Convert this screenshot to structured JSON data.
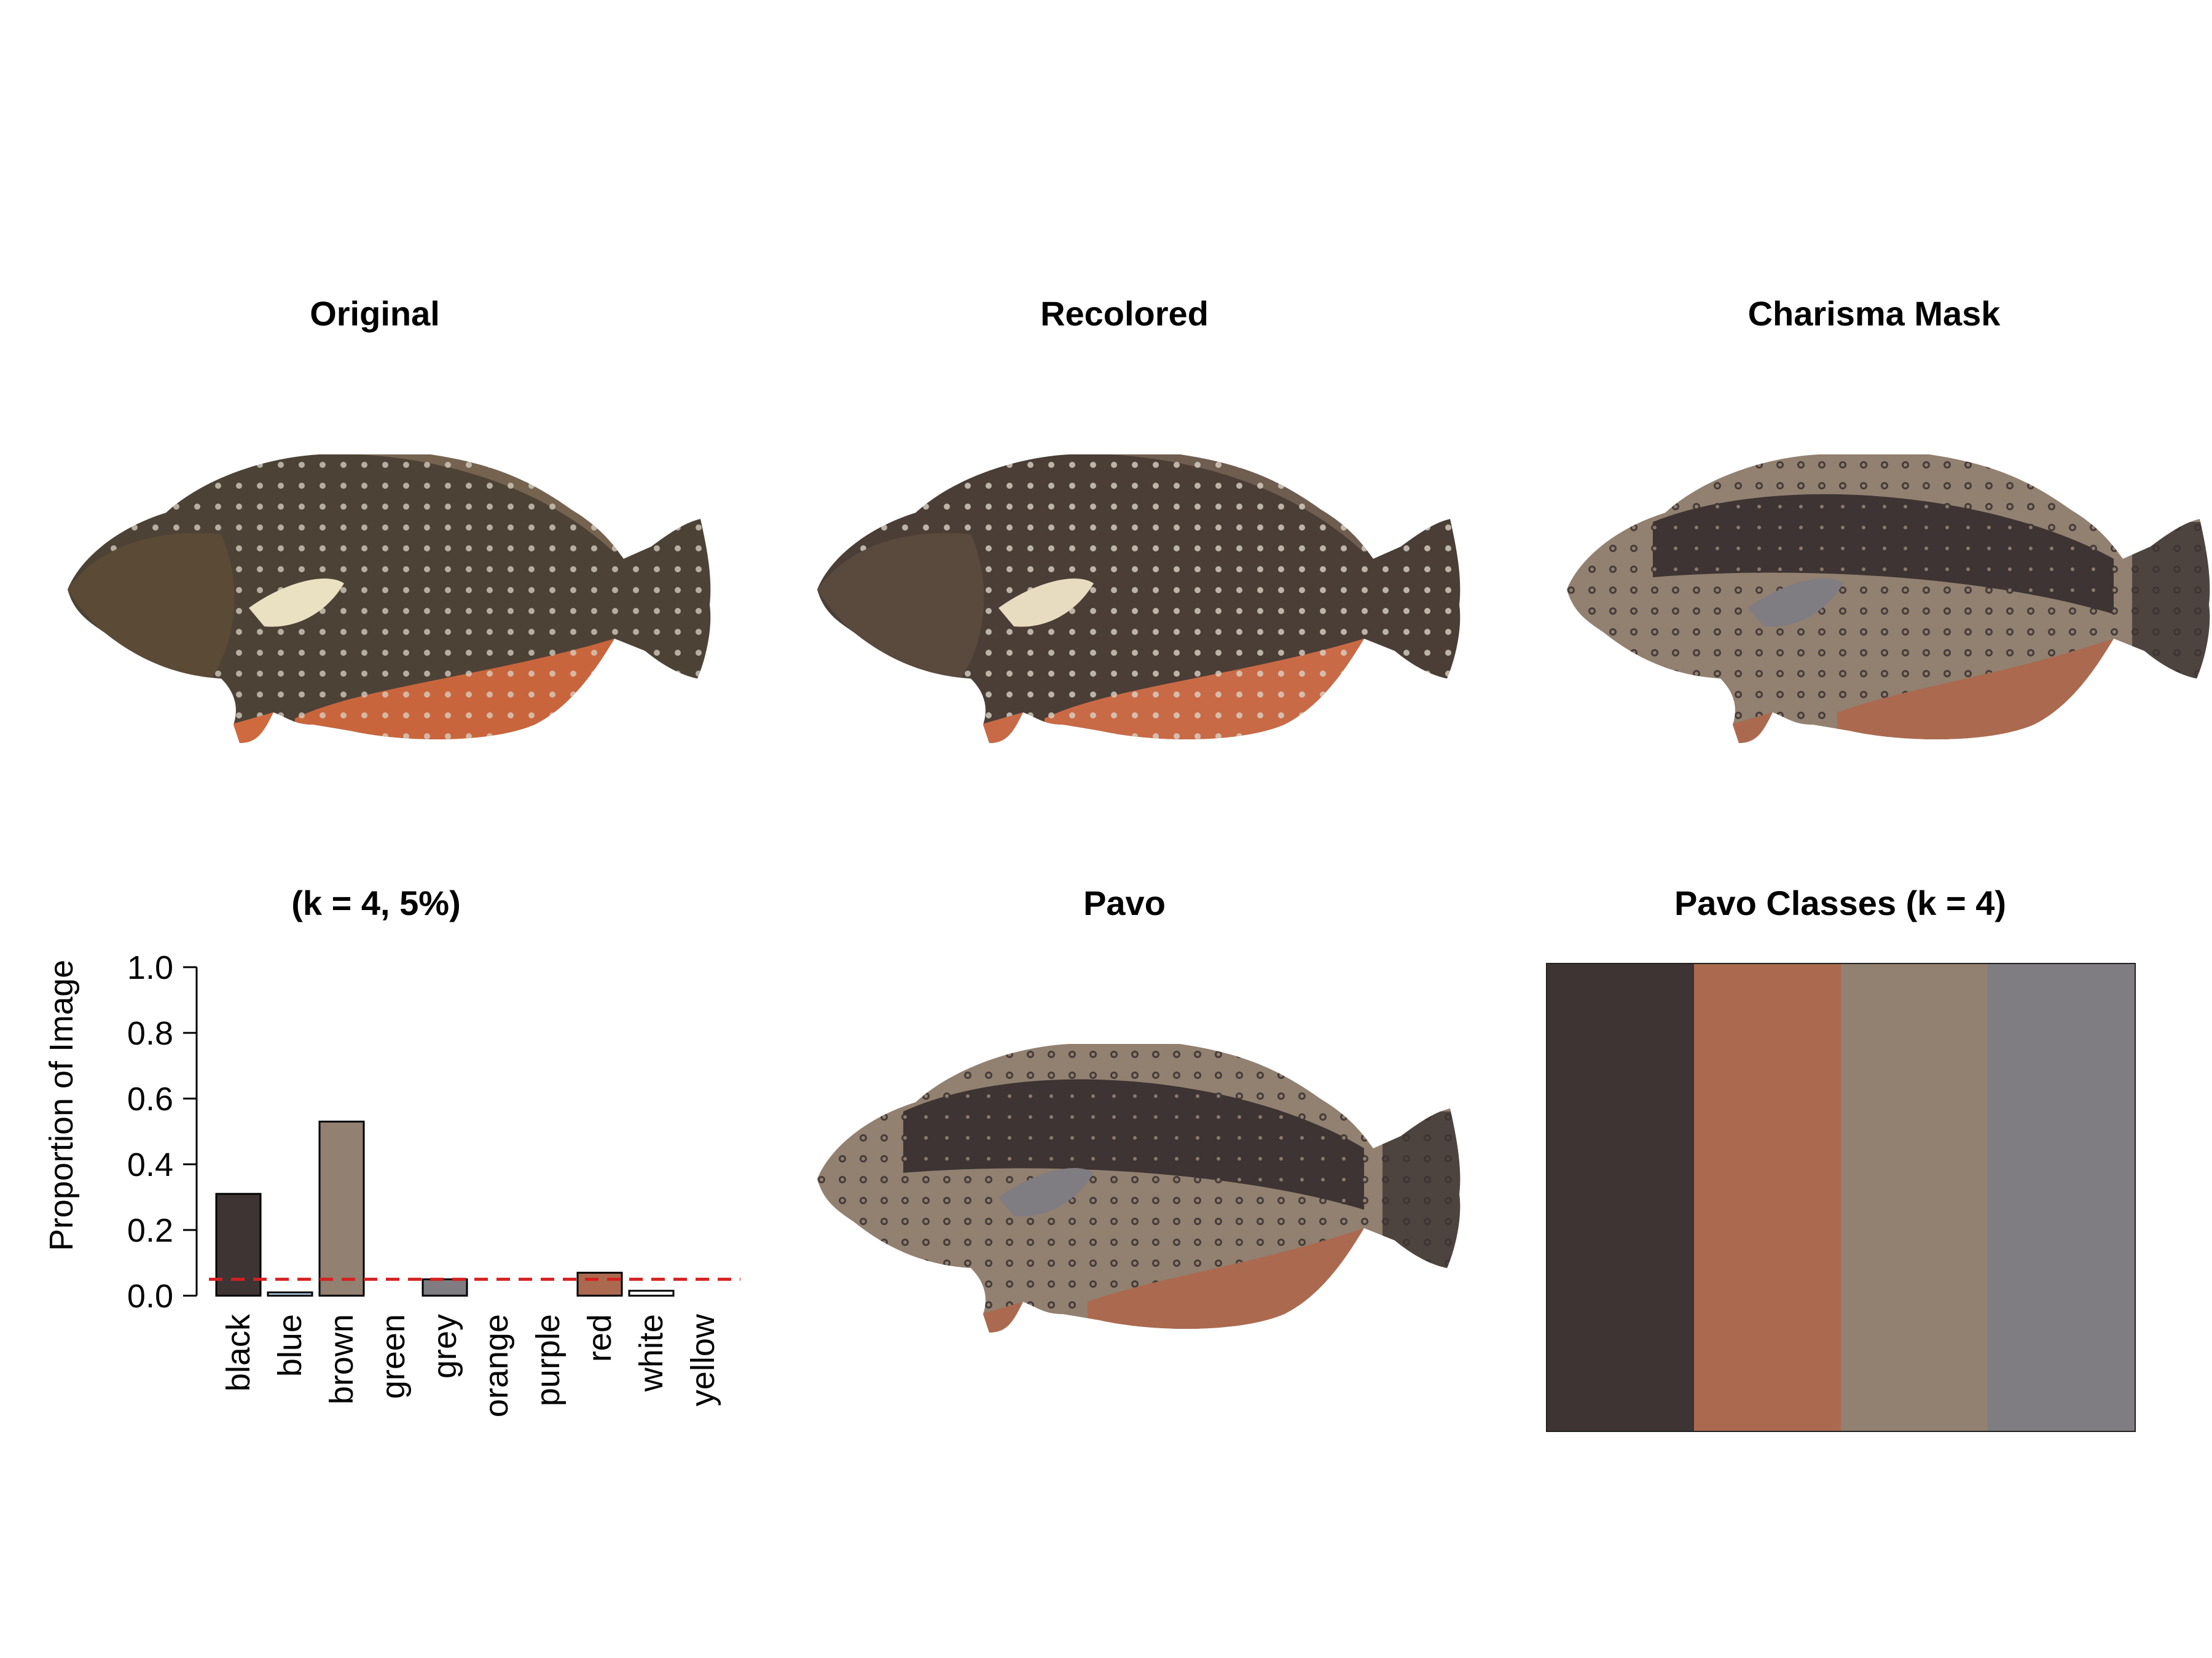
{
  "panels": {
    "original": "Original",
    "recolored": "Recolored",
    "charisma_mask": "Charisma Mask",
    "chart": "(k = 4, 5%)",
    "pavo": "Pavo",
    "pavo_classes": "Pavo Classes (k = 4)"
  },
  "palette": {
    "black": "#3d3433",
    "red": "#ab6a4f",
    "brown": "#928070",
    "grey": "#7f7c82",
    "blue": "#b8d6ee",
    "white": "#ffffff",
    "orange_fin": "#d0603a",
    "fish_body": "#4d4236",
    "dash_line": "#d62020"
  },
  "pavo_classes": [
    {
      "color": "#3d3433"
    },
    {
      "color": "#ab6a4f"
    },
    {
      "color": "#928070"
    },
    {
      "color": "#7f7c82"
    }
  ],
  "chart_data": {
    "type": "bar",
    "title": "(k = 4, 5%)",
    "ylabel": "Proportion of Image",
    "xlabel": "",
    "categories": [
      "black",
      "blue",
      "brown",
      "green",
      "grey",
      "orange",
      "purple",
      "red",
      "white",
      "yellow"
    ],
    "values": [
      0.31,
      0.01,
      0.53,
      0,
      0.05,
      0,
      0,
      0.07,
      0.015,
      0
    ],
    "bar_colors": [
      "#3d3433",
      "#b8d6ee",
      "#928070",
      "#ffffff",
      "#7f7c82",
      "#ffffff",
      "#ffffff",
      "#ab6a4f",
      "#ffffff",
      "#ffffff"
    ],
    "yticks": [
      "0.0",
      "0.2",
      "0.4",
      "0.6",
      "0.8",
      "1.0"
    ],
    "ylim": [
      0,
      1.0
    ],
    "threshold": 0.05,
    "threshold_style": "dashed red line",
    "grid": false
  }
}
